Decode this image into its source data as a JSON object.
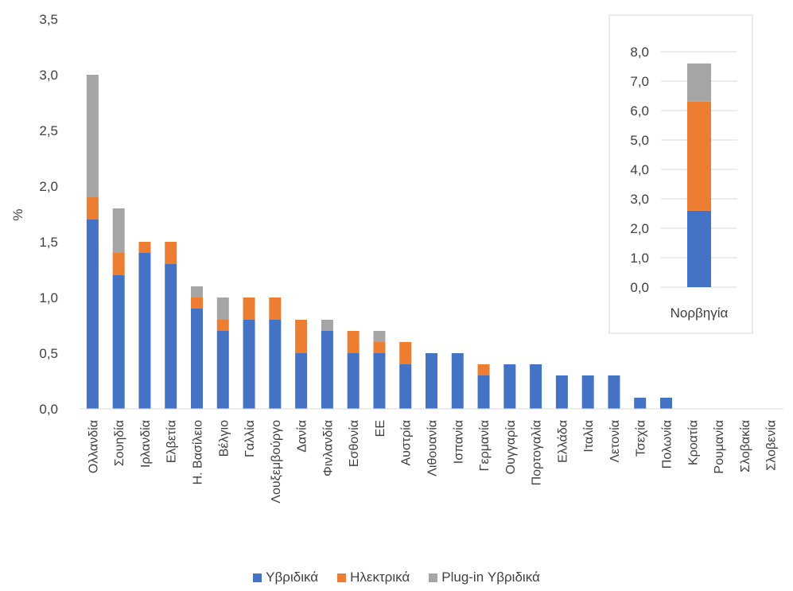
{
  "chart_data": [
    {
      "type": "bar",
      "stacked": true,
      "ylabel": "%",
      "ylim": [
        0,
        3.5
      ],
      "ytick_labels": [
        "0,0",
        "0,5",
        "1,0",
        "1,5",
        "2,0",
        "2,5",
        "3,0",
        "3,5"
      ],
      "grid": false,
      "categories": [
        "Ολλανδία",
        "Σουηδία",
        "Ιρλανδία",
        "Ελβετία",
        "Η. Βασίλειο",
        "Βέλγιο",
        "Γαλλία",
        "Λουξεμβούργο",
        "Δανία",
        "Φινλανδία",
        "Εσθονία",
        "ΕΕ",
        "Αυστρία",
        "Λιθουανία",
        "Ισπανία",
        "Γερμανία",
        "Ουγγαρία",
        "Πορτογαλία",
        "Ελλάδα",
        "Ιταλία",
        "Λετονία",
        "Τσεχία",
        "Πολωνία",
        "Κροατία",
        "Ρουμανία",
        "Σλοβακία",
        "Σλοβενία"
      ],
      "series": [
        {
          "name": "Υβριδικά",
          "color": "#4472C4",
          "values": [
            1.7,
            1.2,
            1.4,
            1.3,
            0.9,
            0.7,
            0.8,
            0.8,
            0.5,
            0.7,
            0.5,
            0.5,
            0.4,
            0.5,
            0.5,
            0.3,
            0.4,
            0.4,
            0.3,
            0.3,
            0.3,
            0.1,
            0.1,
            0,
            0,
            0,
            0
          ]
        },
        {
          "name": "Ηλεκτρικά",
          "color": "#ED7D31",
          "values": [
            0.2,
            0.2,
            0.1,
            0.2,
            0.1,
            0.1,
            0.2,
            0.2,
            0.3,
            0,
            0.2,
            0.1,
            0.2,
            0,
            0,
            0.1,
            0,
            0,
            0,
            0,
            0,
            0,
            0,
            0,
            0,
            0,
            0
          ]
        },
        {
          "name": "Plug-in Υβριδικά",
          "color": "#A5A5A5",
          "values": [
            1.1,
            0.4,
            0,
            0,
            0.1,
            0.2,
            0,
            0,
            0,
            0.1,
            0,
            0.1,
            0,
            0,
            0,
            0,
            0,
            0,
            0,
            0,
            0,
            0,
            0,
            0,
            0,
            0,
            0
          ]
        }
      ],
      "legend": "bottom"
    },
    {
      "type": "bar",
      "stacked": true,
      "inset": true,
      "ylim": [
        0,
        8
      ],
      "ytick_labels": [
        "0,0",
        "1,0",
        "2,0",
        "3,0",
        "4,0",
        "5,0",
        "6,0",
        "7,0",
        "8,0"
      ],
      "grid": true,
      "categories": [
        "Νορβηγία"
      ],
      "series": [
        {
          "name": "Υβριδικά",
          "color": "#4472C4",
          "values": [
            2.6
          ]
        },
        {
          "name": "Ηλεκτρικά",
          "color": "#ED7D31",
          "values": [
            3.7
          ]
        },
        {
          "name": "Plug-in Υβριδικά",
          "color": "#A5A5A5",
          "values": [
            1.3
          ]
        }
      ]
    }
  ]
}
